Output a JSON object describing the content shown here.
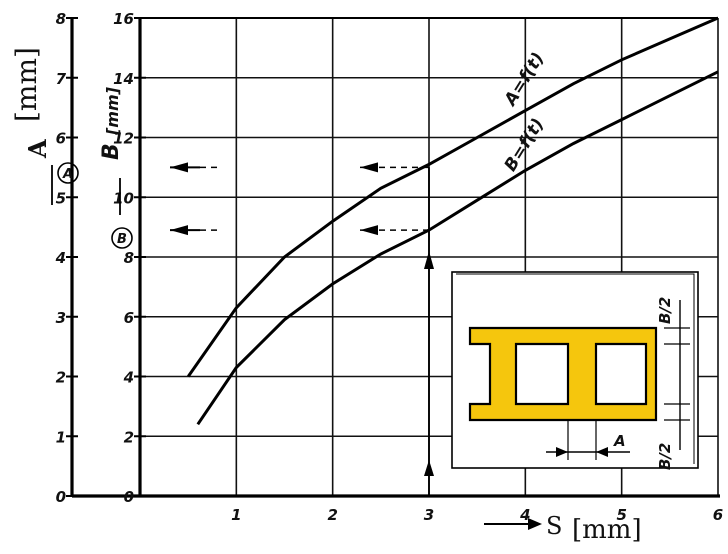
{
  "chart_data": {
    "type": "line",
    "x_axis": {
      "label_letter": "S",
      "label_unit": "[mm]",
      "range": [
        0,
        6
      ],
      "ticks": [
        "1",
        "2",
        "3",
        "4",
        "5",
        "6"
      ]
    },
    "y_axis_left": {
      "label_letter": "A",
      "label_unit": "[mm]",
      "circle_marker": "A",
      "range": [
        0,
        8
      ],
      "ticks": [
        "0",
        "1",
        "2",
        "3",
        "4",
        "5",
        "6",
        "7",
        "8"
      ]
    },
    "y_axis_right": {
      "label_letter": "B",
      "label_unit": "[mm]",
      "circle_marker": "B",
      "range": [
        0,
        16
      ],
      "ticks": [
        "0",
        "2",
        "4",
        "6",
        "8",
        "10",
        "12",
        "14",
        "16"
      ]
    },
    "series": [
      {
        "name": "A=f(t)",
        "axis": "right",
        "x": [
          0.5,
          1.0,
          1.5,
          2.0,
          2.5,
          3.0,
          3.5,
          4.0,
          4.5,
          5.0,
          5.5,
          6.0
        ],
        "y": [
          4.0,
          6.3,
          8.0,
          9.2,
          10.3,
          11.1,
          12.0,
          12.9,
          13.8,
          14.6,
          15.3,
          16.0
        ]
      },
      {
        "name": "B=f(t)",
        "axis": "right",
        "x": [
          0.6,
          1.0,
          1.5,
          2.0,
          2.5,
          3.0,
          3.5,
          4.0,
          4.5,
          5.0,
          5.5,
          6.0
        ],
        "y": [
          2.4,
          4.3,
          5.9,
          7.1,
          8.1,
          8.9,
          9.9,
          10.9,
          11.8,
          12.6,
          13.4,
          14.2
        ]
      }
    ],
    "reference_lines": {
      "s_value": 3,
      "a_reading_b_units": 11,
      "b_reading_b_units": 8.9
    },
    "cross_section_labels": {
      "top_right": "B/2",
      "bottom_right": "B/2",
      "bottom_middle": "A"
    },
    "colors": {
      "section_fill": "#f5c60d",
      "ink": "#111111"
    },
    "grid": true
  }
}
